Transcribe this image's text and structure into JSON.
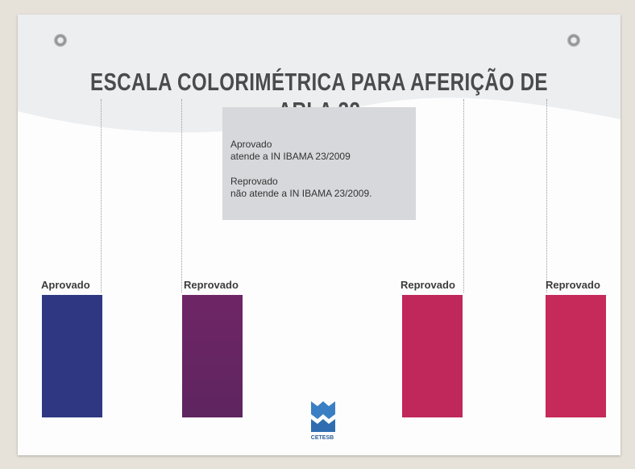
{
  "header": {
    "title": "ESCALA COLORIMÉTRICA PARA AFERIÇÃO DE ARLA 32"
  },
  "legend_box": {
    "lines": [
      "Aprovado",
      "atende a IN IBAMA 23/2009",
      "Reprovado",
      "não atende a IN IBAMA 23/2009."
    ]
  },
  "swatches": [
    {
      "label": "Aprovado"
    },
    {
      "label": "Reprovado"
    },
    {
      "label": "Reprovado"
    },
    {
      "label": "Reprovado"
    }
  ],
  "logo": {
    "text": "CETESB"
  }
}
